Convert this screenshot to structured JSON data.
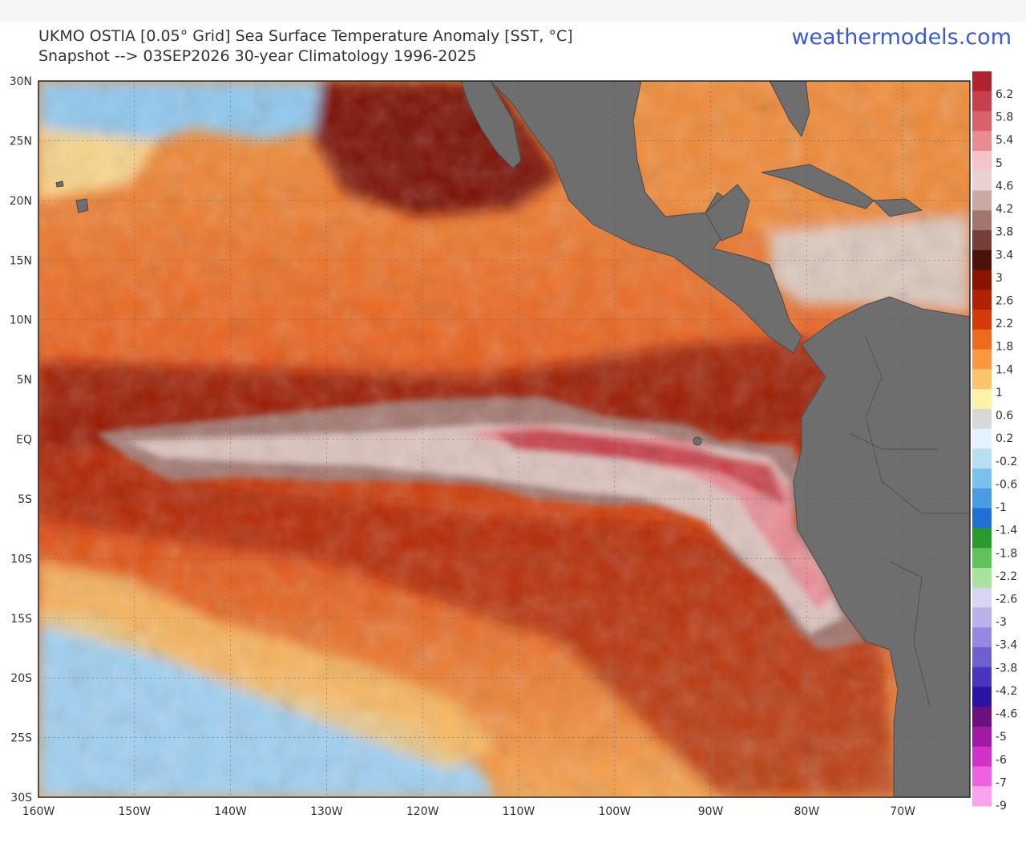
{
  "header": {
    "title_line1": "UKMO OSTIA [0.05° Grid] Sea Surface Temperature Anomaly [SST, °C]",
    "title_line2": "Snapshot --> 03SEP2026   30-year Climatology 1996-2025",
    "site": "weathermodels.com"
  },
  "map": {
    "lat_range": [
      -30,
      30
    ],
    "lon_range": [
      -160,
      -63
    ],
    "lat_ticks": [
      {
        "value": 30,
        "label": "30N"
      },
      {
        "value": 25,
        "label": "25N"
      },
      {
        "value": 20,
        "label": "20N"
      },
      {
        "value": 15,
        "label": "15N"
      },
      {
        "value": 10,
        "label": "10N"
      },
      {
        "value": 5,
        "label": "5N"
      },
      {
        "value": 0,
        "label": "EQ"
      },
      {
        "value": -5,
        "label": "5S"
      },
      {
        "value": -10,
        "label": "10S"
      },
      {
        "value": -15,
        "label": "15S"
      },
      {
        "value": -20,
        "label": "20S"
      },
      {
        "value": -25,
        "label": "25S"
      },
      {
        "value": -30,
        "label": "30S"
      }
    ],
    "lon_ticks": [
      {
        "value": -160,
        "label": "160W"
      },
      {
        "value": -150,
        "label": "150W"
      },
      {
        "value": -140,
        "label": "140W"
      },
      {
        "value": -130,
        "label": "130W"
      },
      {
        "value": -120,
        "label": "120W"
      },
      {
        "value": -110,
        "label": "110W"
      },
      {
        "value": -100,
        "label": "100W"
      },
      {
        "value": -90,
        "label": "90W"
      },
      {
        "value": -80,
        "label": "80W"
      },
      {
        "value": -70,
        "label": "70W"
      }
    ],
    "gridlines": true
  },
  "colorbar": {
    "labels": [
      "6.2",
      "5.8",
      "5.4",
      "5",
      "4.6",
      "4.2",
      "3.8",
      "3.4",
      "3",
      "2.6",
      "2.2",
      "1.8",
      "1.4",
      "1",
      "0.6",
      "0.2",
      "-0.2",
      "-0.6",
      "-1",
      "-1.4",
      "-1.8",
      "-2.2",
      "-2.6",
      "-3",
      "-3.4",
      "-3.8",
      "-4.2",
      "-4.6",
      "-5",
      "-6",
      "-7",
      "-9"
    ],
    "colors": [
      "#b3222f",
      "#c8404c",
      "#d8616b",
      "#e88b93",
      "#f6c4c8",
      "#e9d3d1",
      "#c9a9a3",
      "#a2766e",
      "#744038",
      "#4a1208",
      "#8c1300",
      "#b02200",
      "#d63a0a",
      "#ee6a1c",
      "#f99840",
      "#fbc46c",
      "#fdf2a8",
      "#d8d8d8",
      "#e4f2fb",
      "#b8def4",
      "#7cc0ee",
      "#4a9be4",
      "#1f6fd6",
      "#2a9a2e",
      "#5fc25a",
      "#a7e39c",
      "#d9d4f3",
      "#b9b0ec",
      "#9488e0",
      "#6f60d2",
      "#4a34c0",
      "#2b12a4",
      "#6c1080",
      "#a11aa6",
      "#d232c9",
      "#f060e0",
      "#f9a3ee"
    ],
    "unit": "°C"
  }
}
